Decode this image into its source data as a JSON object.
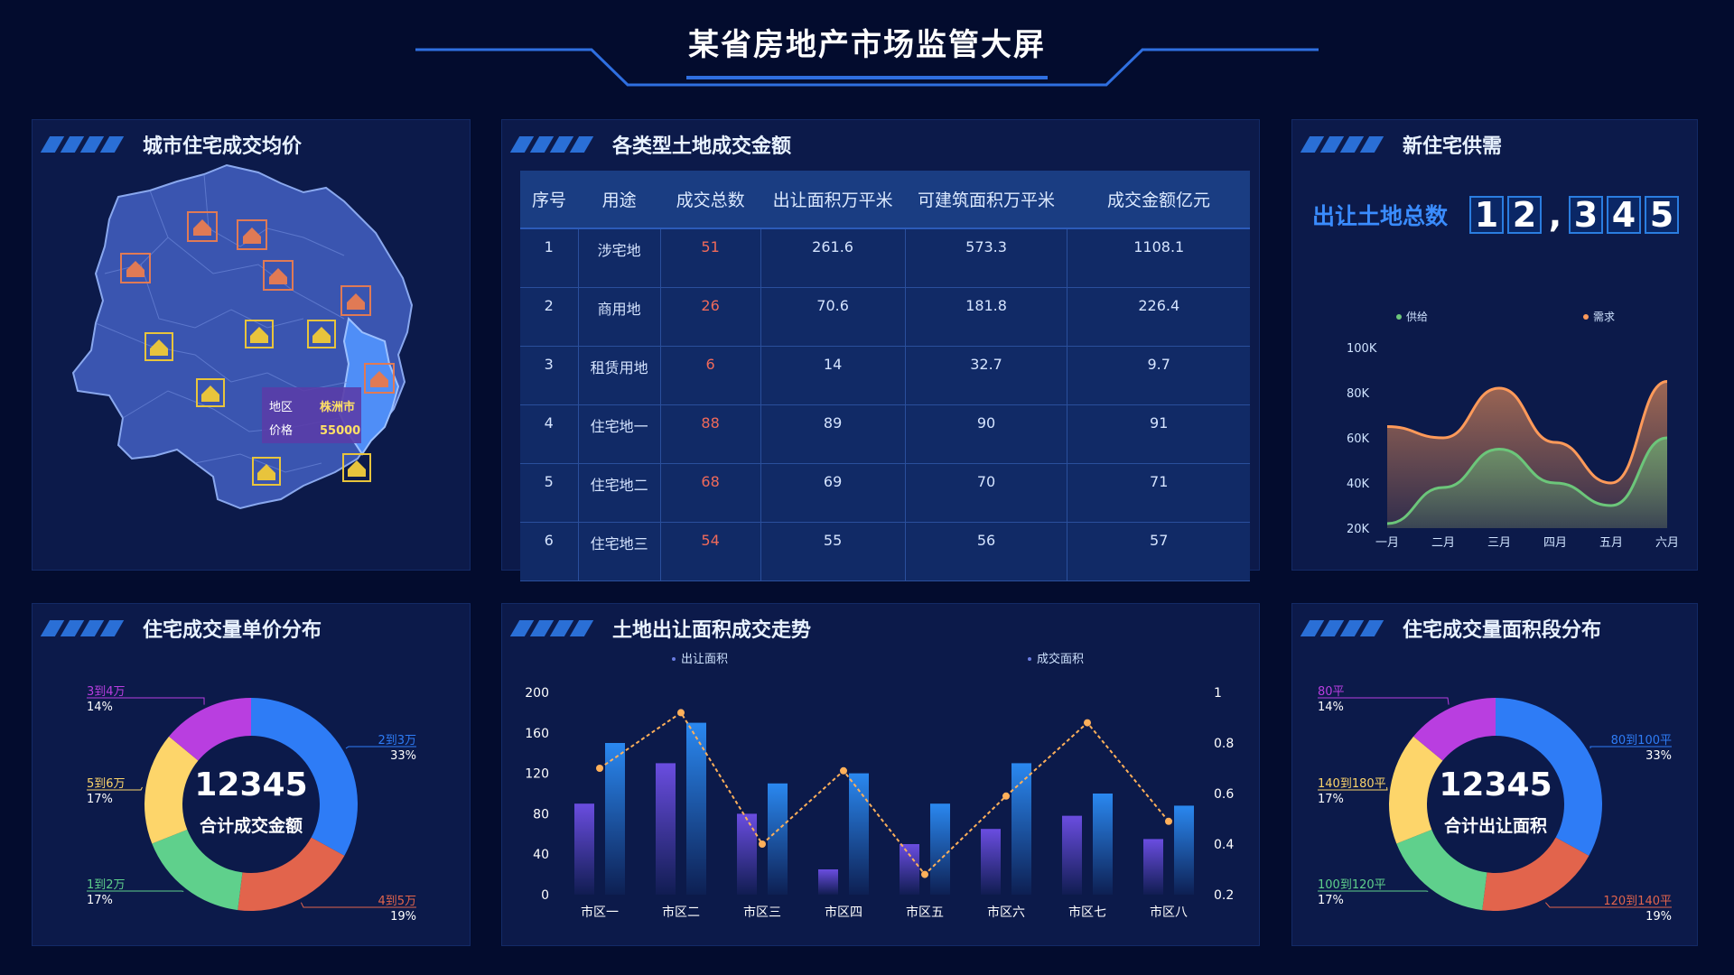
{
  "header": {
    "title": "某省房地产市场监管大屏"
  },
  "panels": {
    "map": {
      "title": "城市住宅成交均价"
    },
    "land_table": {
      "title": "各类型土地成交金额"
    },
    "supply": {
      "title": "新住宅供需"
    },
    "price_dist": {
      "title": "住宅成交量单价分布"
    },
    "land_trend": {
      "title": "土地出让面积成交走势"
    },
    "area_dist": {
      "title": "住宅成交量面积段分布"
    }
  },
  "map": {
    "tooltip": {
      "region_label": "地区",
      "region_value": "株洲市",
      "price_label": "价格",
      "price_value": "55000"
    },
    "colors": {
      "region": "#3a55b0",
      "highlight": "#4f8ef7",
      "marker_hot": "#e07a55",
      "marker_warm": "#e8c43c"
    }
  },
  "land_table": {
    "headers": [
      "序号",
      "用途",
      "成交总数",
      "出让面积万平米",
      "可建筑面积万平米",
      "成交金额亿元"
    ],
    "rows": [
      [
        "1",
        "涉宅地",
        "51",
        "261.6",
        "573.3",
        "1108.1"
      ],
      [
        "2",
        "商用地",
        "26",
        "70.6",
        "181.8",
        "226.4"
      ],
      [
        "3",
        "租赁用地",
        "6",
        "14",
        "32.7",
        "9.7"
      ],
      [
        "4",
        "住宅地一",
        "88",
        "89",
        "90",
        "91"
      ],
      [
        "5",
        "住宅地二",
        "68",
        "69",
        "70",
        "71"
      ],
      [
        "6",
        "住宅地三",
        "54",
        "55",
        "56",
        "57"
      ]
    ]
  },
  "supply": {
    "counter_label": "出让土地总数",
    "counter_digits": [
      "1",
      "2",
      ",",
      "3",
      "4",
      "5"
    ]
  },
  "chart_data": [
    {
      "id": "supply",
      "type": "area",
      "categories": [
        "一月",
        "二月",
        "三月",
        "四月",
        "五月",
        "六月"
      ],
      "y_ticks": [
        "100K",
        "80K",
        "60K",
        "40K",
        "20K"
      ],
      "ylim": [
        20000,
        100000
      ],
      "series": [
        {
          "name": "供给",
          "color": "#6cc67a",
          "values": [
            22000,
            38000,
            55000,
            40000,
            30000,
            60000
          ]
        },
        {
          "name": "需求",
          "color": "#ff9a5a",
          "values": [
            65000,
            60000,
            82000,
            58000,
            40000,
            85000
          ]
        }
      ]
    },
    {
      "id": "price_dist",
      "type": "pie",
      "center_value": "12345",
      "center_label": "合计成交金额",
      "slices": [
        {
          "name": "2到3万",
          "percent": "33%",
          "value": 33,
          "color": "#2e7cf6"
        },
        {
          "name": "4到5万",
          "percent": "19%",
          "value": 19,
          "color": "#e2644c"
        },
        {
          "name": "1到2万",
          "percent": "17%",
          "value": 17,
          "color": "#5fd08c"
        },
        {
          "name": "5到6万",
          "percent": "17%",
          "value": 17,
          "color": "#fdd56a"
        },
        {
          "name": "3到4万",
          "percent": "14%",
          "value": 14,
          "color": "#b93ee0"
        }
      ]
    },
    {
      "id": "land_trend",
      "type": "bar",
      "categories": [
        "市区一",
        "市区二",
        "市区三",
        "市区四",
        "市区五",
        "市区六",
        "市区七",
        "市区八"
      ],
      "y_left_ticks": [
        "200",
        "160",
        "120",
        "80",
        "40",
        "0"
      ],
      "y_right_ticks": [
        "1",
        "0.8",
        "0.6",
        "0.4",
        "0.2"
      ],
      "ylim_left": [
        0,
        200
      ],
      "ylim_right": [
        0.2,
        1
      ],
      "legend": [
        "出让面积",
        "成交面积"
      ],
      "series": [
        {
          "name": "bar_a",
          "color": "#6a4de0",
          "values": [
            90,
            130,
            80,
            25,
            50,
            65,
            78,
            55
          ]
        },
        {
          "name": "bar_b",
          "color": "#2a88f0",
          "values": [
            150,
            170,
            110,
            120,
            90,
            130,
            100,
            88
          ]
        },
        {
          "name": "line",
          "color": "#ffb05a",
          "values": [
            0.7,
            0.92,
            0.4,
            0.69,
            0.28,
            0.59,
            0.88,
            0.49
          ]
        }
      ]
    },
    {
      "id": "area_dist",
      "type": "pie",
      "center_value": "12345",
      "center_label": "合计出让面积",
      "slices": [
        {
          "name": "80到100平",
          "percent": "33%",
          "value": 33,
          "color": "#2e7cf6"
        },
        {
          "name": "120到140平",
          "percent": "19%",
          "value": 19,
          "color": "#e2644c"
        },
        {
          "name": "100到120平",
          "percent": "17%",
          "value": 17,
          "color": "#5fd08c"
        },
        {
          "name": "140到180平",
          "percent": "17%",
          "value": 17,
          "color": "#fdd56a"
        },
        {
          "name": "80平",
          "percent": "14%",
          "value": 14,
          "color": "#b93ee0"
        }
      ]
    }
  ]
}
